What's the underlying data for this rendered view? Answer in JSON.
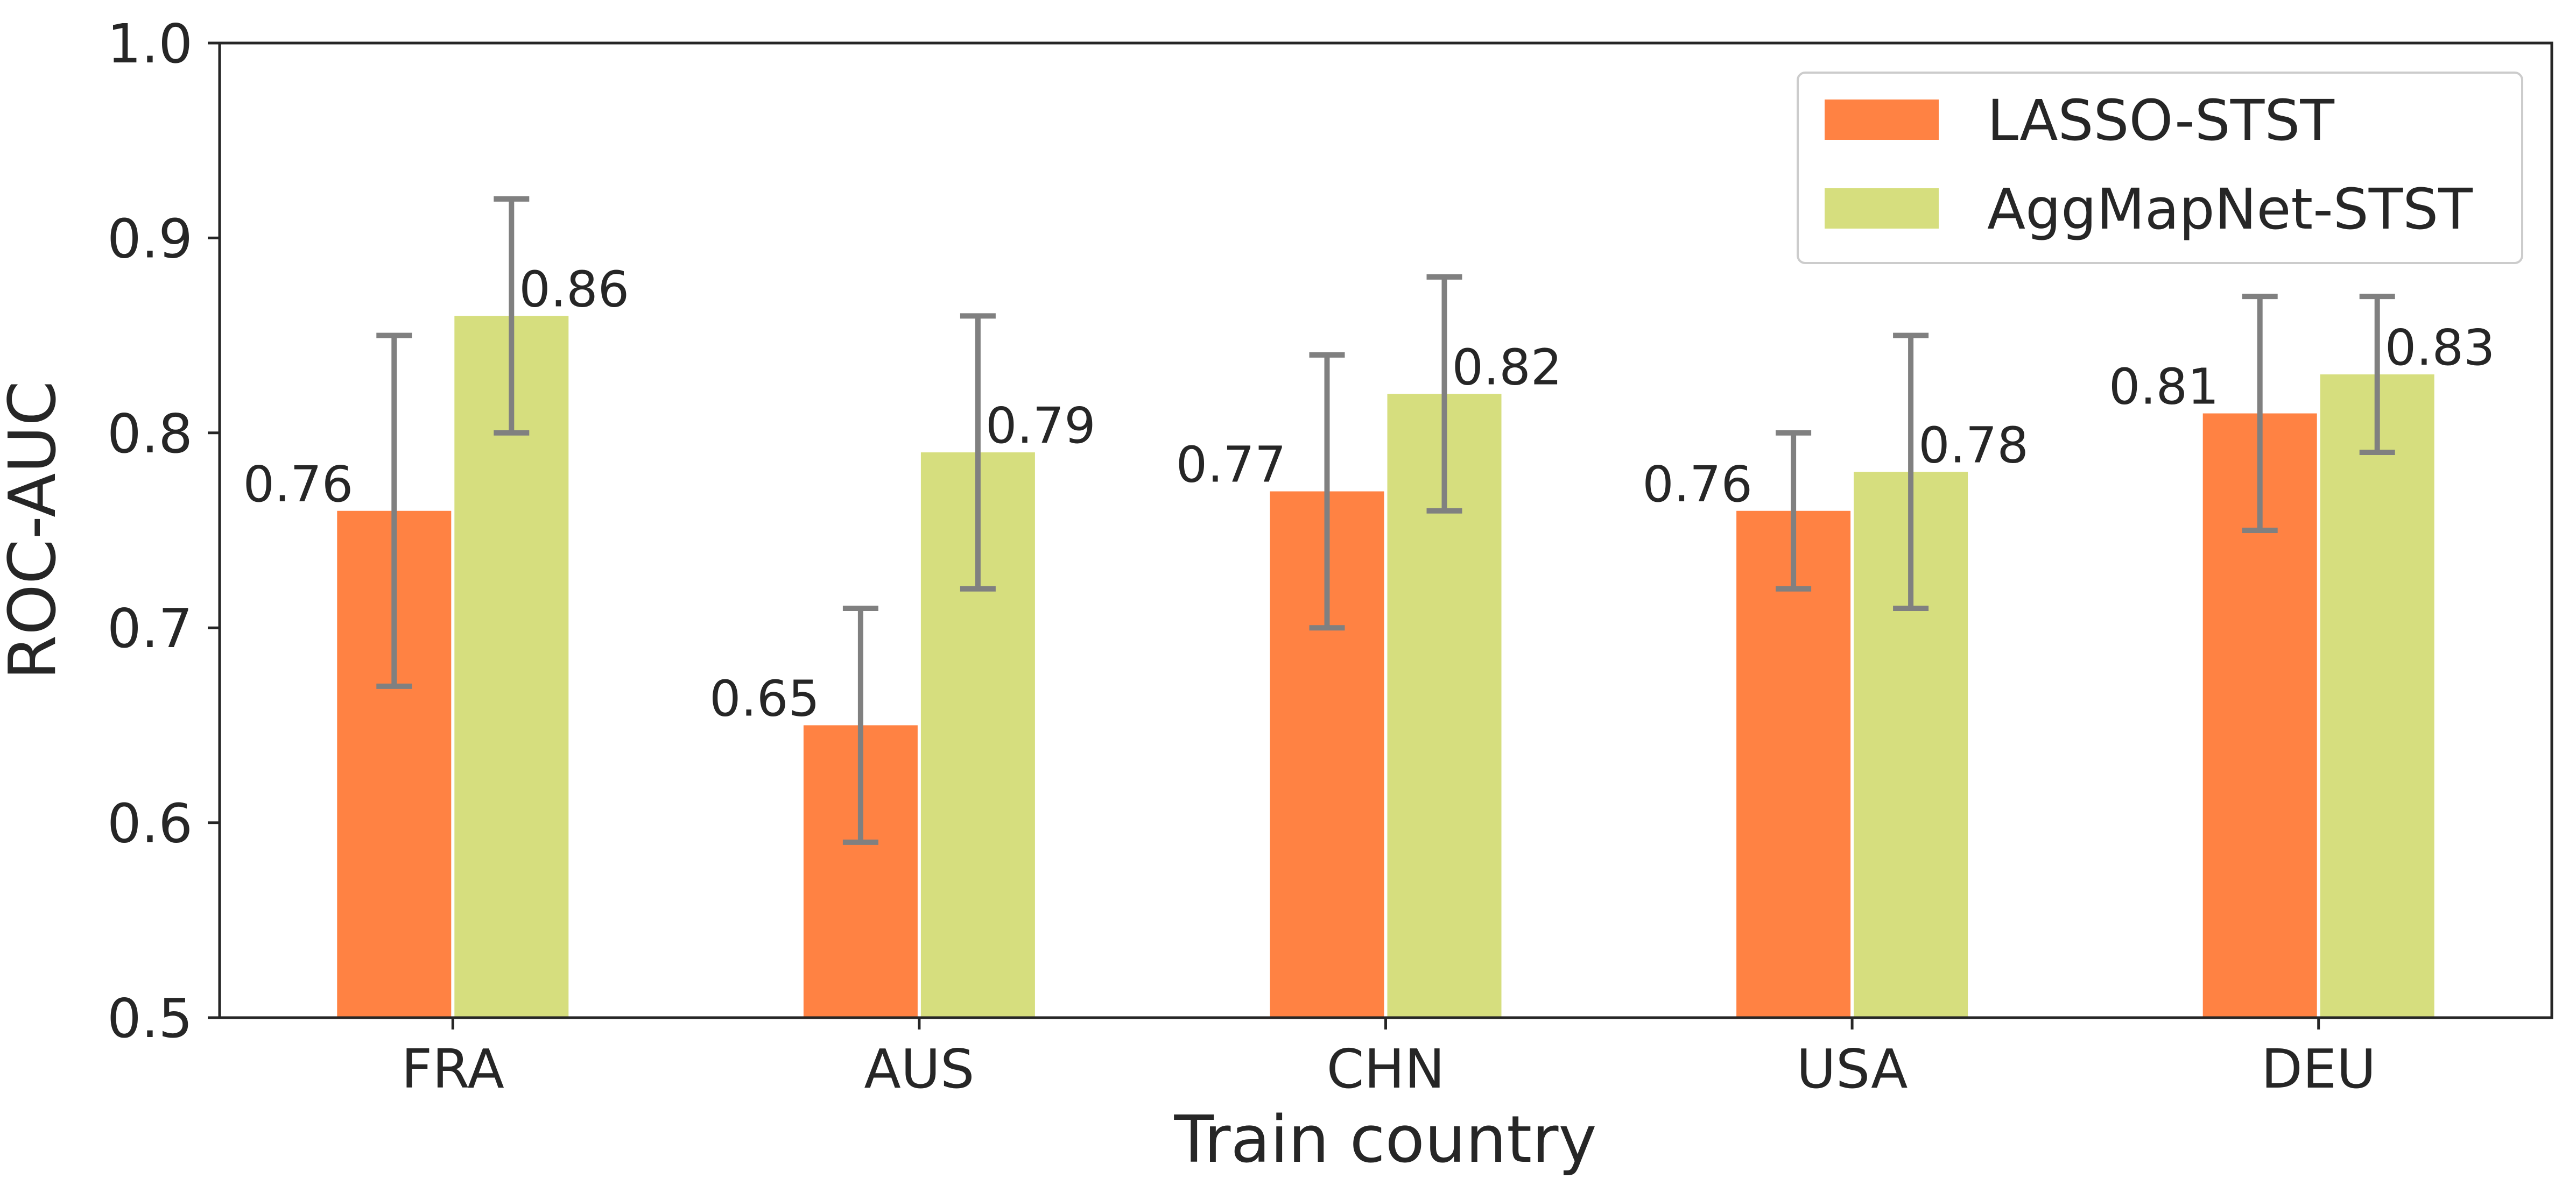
{
  "chart_data": {
    "type": "bar",
    "title": "",
    "xlabel": "Train country",
    "ylabel": "ROC-AUC",
    "categories": [
      "FRA",
      "AUS",
      "CHN",
      "USA",
      "DEU"
    ],
    "ylim": [
      0.5,
      1.0
    ],
    "yticks": [
      "0.5",
      "0.6",
      "0.7",
      "0.8",
      "0.9",
      "1.0"
    ],
    "grid": false,
    "legend_position": "top-right",
    "series": [
      {
        "name": "LASSO-STST",
        "color": "#ff8243",
        "values": [
          0.76,
          0.65,
          0.77,
          0.76,
          0.81
        ],
        "labels": [
          "0.76",
          "0.65",
          "0.77",
          "0.76",
          "0.81"
        ],
        "err_low": [
          0.67,
          0.59,
          0.7,
          0.72,
          0.75
        ],
        "err_high": [
          0.85,
          0.71,
          0.84,
          0.8,
          0.87
        ]
      },
      {
        "name": "AggMapNet-STST",
        "color": "#d6de7e",
        "values": [
          0.86,
          0.79,
          0.82,
          0.78,
          0.83
        ],
        "labels": [
          "0.86",
          "0.79",
          "0.82",
          "0.78",
          "0.83"
        ],
        "err_low": [
          0.8,
          0.72,
          0.76,
          0.71,
          0.79
        ],
        "err_high": [
          0.92,
          0.86,
          0.88,
          0.85,
          0.87
        ]
      }
    ],
    "errorbar_color": "#808080",
    "axis_color": "#262626"
  }
}
